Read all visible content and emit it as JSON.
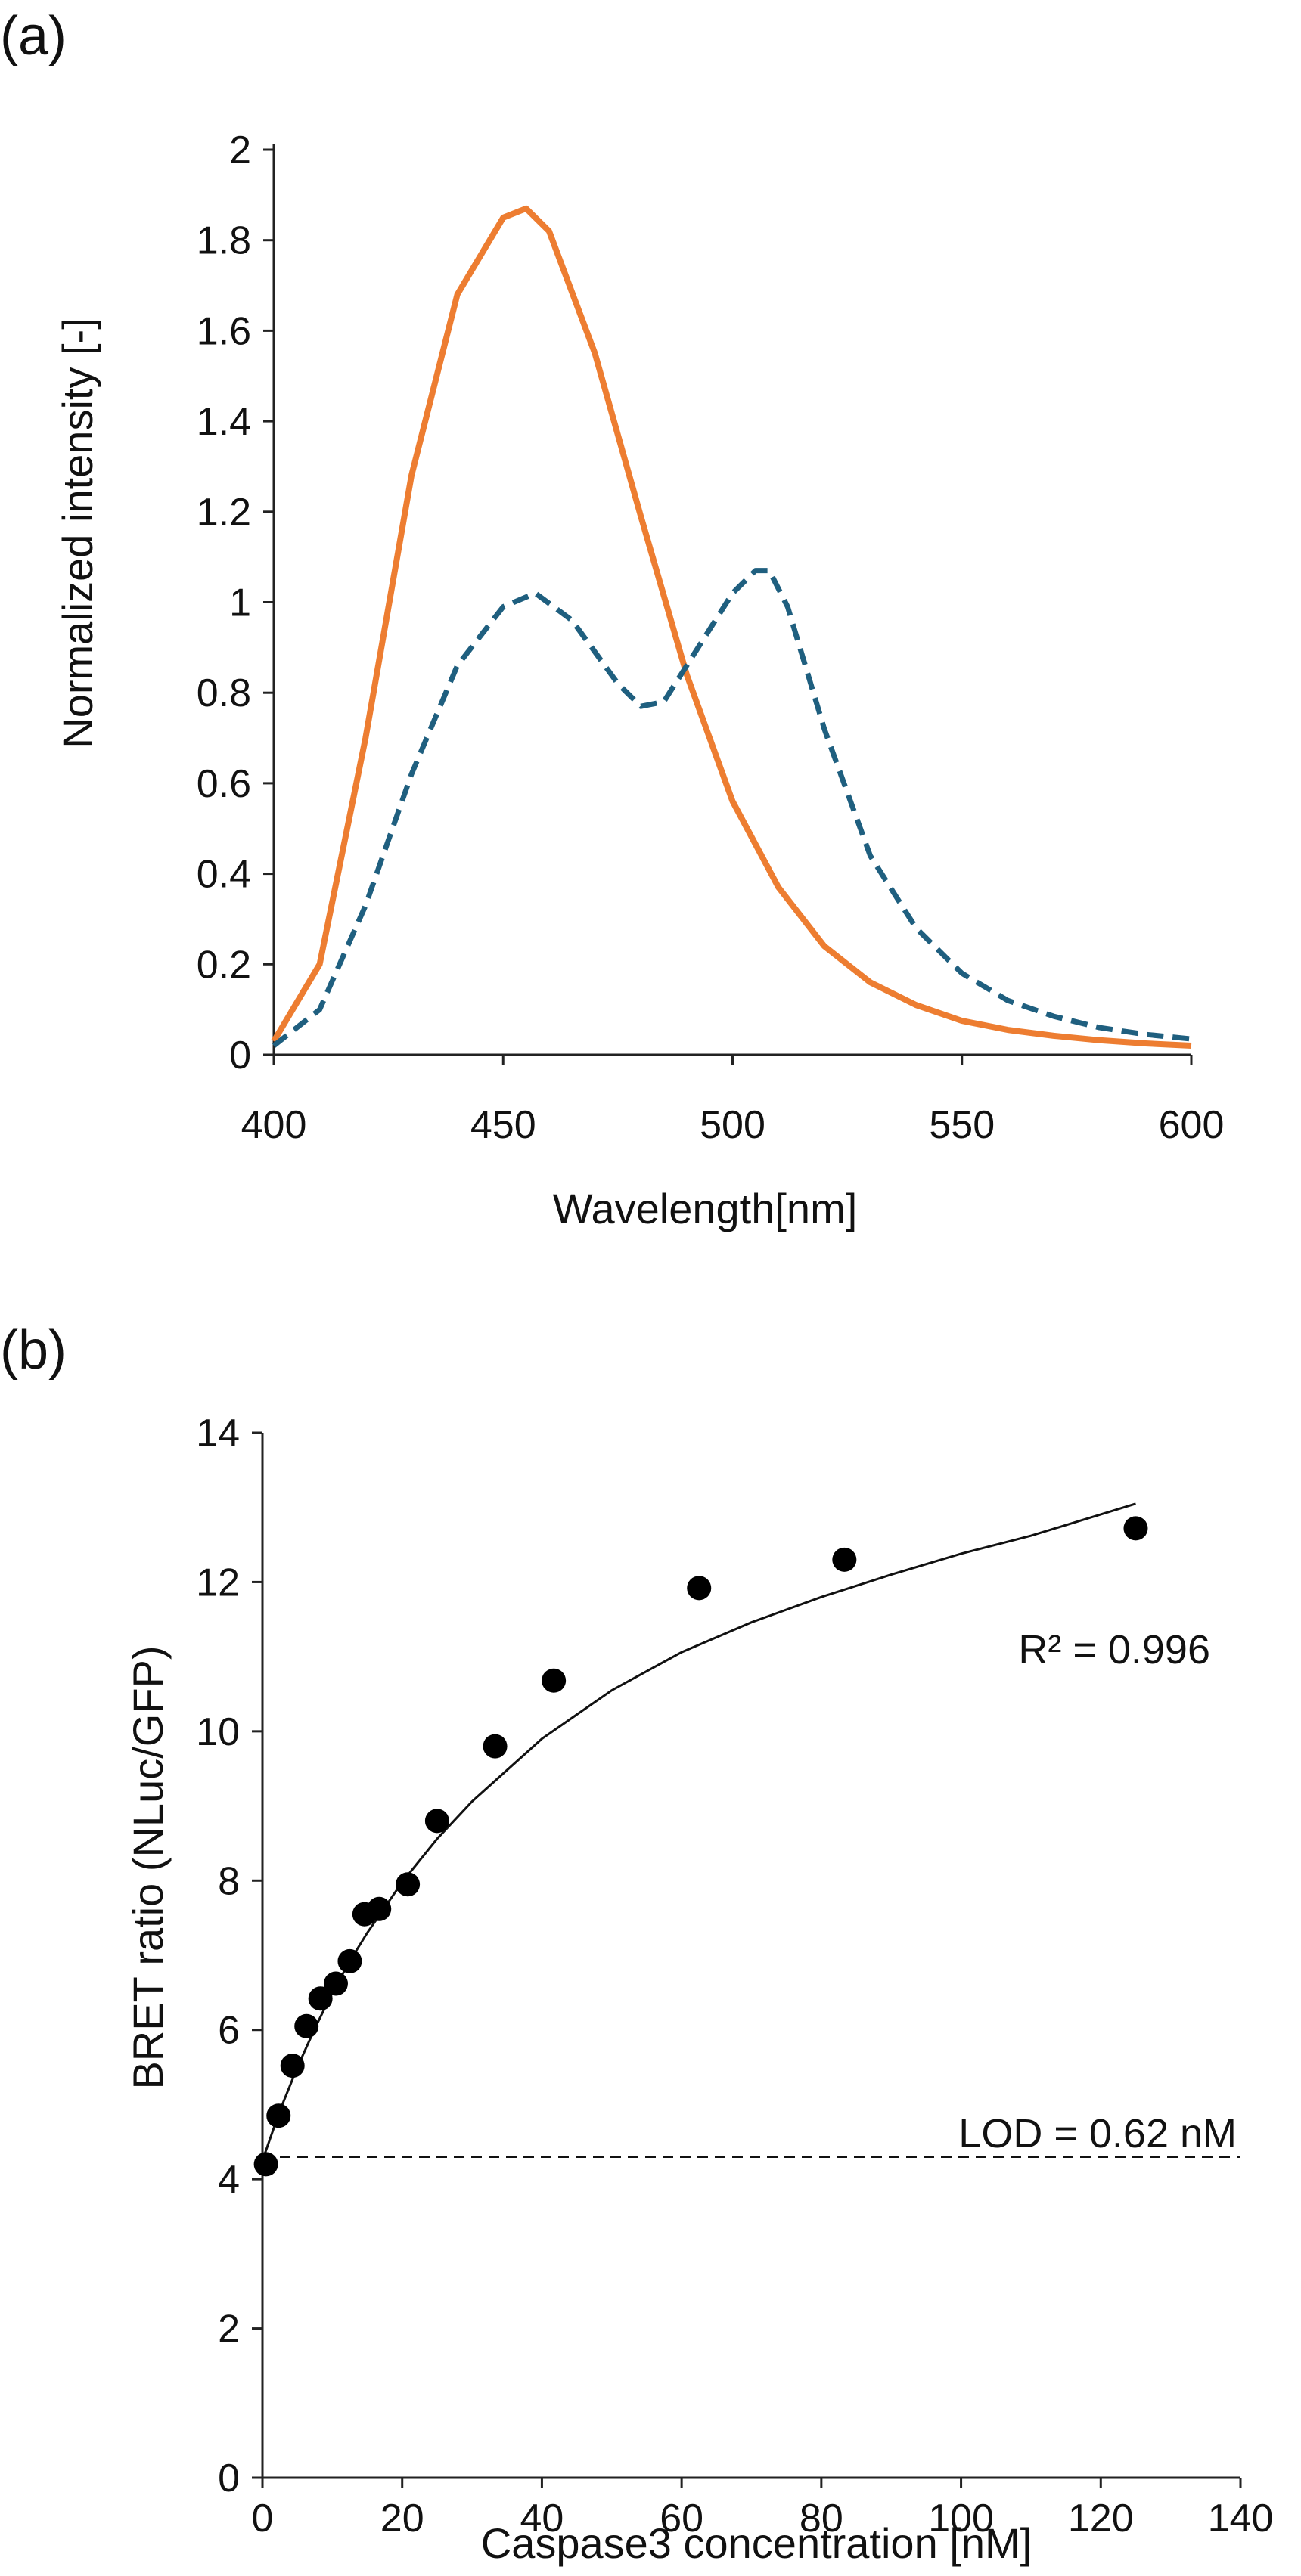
{
  "chart_data": [
    {
      "panel_label": "(a)",
      "type": "line",
      "xlabel": "Wavelength[nm]",
      "ylabel": "Normalized intensity [-]",
      "xlim": [
        400,
        600
      ],
      "ylim": [
        0,
        2
      ],
      "xticks": [
        "400",
        "450",
        "500",
        "550",
        "600"
      ],
      "yticks": [
        "0",
        "0.2",
        "0.4",
        "0.6",
        "0.8",
        "1",
        "1.2",
        "1.4",
        "1.6",
        "1.8",
        "2"
      ],
      "grid": false,
      "series": [
        {
          "name": "orange-solid",
          "style": "solid",
          "color": "#ED7D31",
          "x": [
            400,
            410,
            420,
            430,
            440,
            450,
            455,
            460,
            470,
            480,
            490,
            500,
            510,
            520,
            530,
            540,
            550,
            560,
            570,
            580,
            590,
            600
          ],
          "y": [
            0.03,
            0.2,
            0.7,
            1.28,
            1.68,
            1.85,
            1.87,
            1.82,
            1.55,
            1.19,
            0.84,
            0.56,
            0.37,
            0.24,
            0.16,
            0.11,
            0.075,
            0.055,
            0.042,
            0.032,
            0.025,
            0.02
          ]
        },
        {
          "name": "blue-dashed",
          "style": "dashed",
          "color": "#1F5F7F",
          "x": [
            400,
            410,
            420,
            430,
            440,
            450,
            457,
            465,
            475,
            480,
            485,
            490,
            495,
            500,
            505,
            508,
            512,
            520,
            530,
            540,
            550,
            560,
            570,
            580,
            590,
            600
          ],
          "y": [
            0.02,
            0.1,
            0.33,
            0.62,
            0.86,
            0.99,
            1.02,
            0.96,
            0.82,
            0.77,
            0.78,
            0.86,
            0.94,
            1.02,
            1.07,
            1.07,
            0.99,
            0.72,
            0.44,
            0.28,
            0.18,
            0.12,
            0.085,
            0.06,
            0.045,
            0.035
          ]
        }
      ]
    },
    {
      "panel_label": "(b)",
      "type": "scatter",
      "xlabel": "Caspase3 concentration [nM]",
      "ylabel": "BRET ratio (NLuc/GFP)",
      "xlim": [
        0,
        140
      ],
      "ylim": [
        0,
        14
      ],
      "xticks": [
        "0",
        "20",
        "40",
        "60",
        "80",
        "100",
        "120",
        "140"
      ],
      "yticks": [
        "0",
        "2",
        "4",
        "6",
        "8",
        "10",
        "12",
        "14"
      ],
      "grid": false,
      "points": {
        "x": [
          0.5,
          2.3,
          4.3,
          6.3,
          8.3,
          10.5,
          12.5,
          14.6,
          16.7,
          20.8,
          25,
          33.3,
          41.7,
          62.5,
          83.3,
          125
        ],
        "y": [
          4.2,
          4.85,
          5.52,
          6.05,
          6.42,
          6.62,
          6.92,
          7.55,
          7.62,
          7.95,
          8.8,
          9.8,
          10.68,
          11.92,
          12.3,
          12.72
        ]
      },
      "fit": {
        "x": [
          0,
          2.5,
          5,
          7.5,
          10,
          12.5,
          15,
          20,
          25,
          30,
          40,
          50,
          60,
          70,
          80,
          90,
          100,
          110,
          125
        ],
        "y": [
          4.25,
          4.92,
          5.5,
          6.02,
          6.5,
          6.92,
          7.3,
          7.98,
          8.56,
          9.06,
          9.9,
          10.55,
          11.06,
          11.46,
          11.8,
          12.1,
          12.38,
          12.62,
          13.05
        ]
      },
      "lod_line_y": 4.3,
      "annotations": {
        "r2": "R² = 0.996",
        "lod": "LOD = 0.62 nM"
      }
    }
  ]
}
